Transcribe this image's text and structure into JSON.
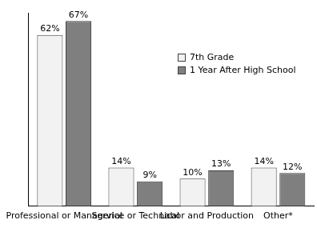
{
  "chart_data": {
    "type": "bar",
    "categories": [
      "Professional or Managerial",
      "Service or Technical",
      "Labor and Production",
      "Other*"
    ],
    "series": [
      {
        "name": "7th Grade",
        "color": "#f2f2f2",
        "values": [
          62,
          14,
          10,
          14
        ],
        "value_labels": [
          "62%",
          "14%",
          "10%",
          "14%"
        ]
      },
      {
        "name": "1 Year After High School",
        "color": "#7f7f7f",
        "values": [
          67,
          9,
          13,
          12
        ],
        "value_labels": [
          "67%",
          "9%",
          "13%",
          "12%"
        ]
      }
    ],
    "ylim": [
      0,
      70
    ],
    "grid": false,
    "legend": "top-right",
    "data_labels": true,
    "tick_labels": "x"
  }
}
